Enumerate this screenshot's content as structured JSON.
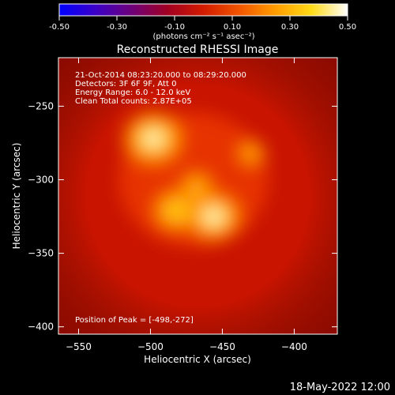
{
  "colorbar": {
    "ticks": [
      "-0.50",
      "-0.30",
      "-0.10",
      "0.10",
      "0.30",
      "0.50"
    ],
    "tick_values": [
      -0.5,
      -0.3,
      -0.1,
      0.1,
      0.3,
      0.5
    ],
    "range": [
      -0.5,
      0.5
    ],
    "unit_label": "(photons cm⁻² s⁻¹ asec⁻²)",
    "colormap": [
      "#0000ff",
      "#3b00c8",
      "#6d007a",
      "#a10022",
      "#d21b00",
      "#f25600",
      "#ff9c00",
      "#ffdb17",
      "#ffffff"
    ]
  },
  "chart_data": {
    "type": "heatmap",
    "title": "Reconstructed RHESSI Image",
    "xlabel": "Heliocentric X (arcsec)",
    "ylabel": "Heliocentric Y (arcsec)",
    "xlim": [
      -564,
      -370
    ],
    "ylim": [
      -405,
      -217
    ],
    "xticks": [
      -550,
      -500,
      -450,
      -400
    ],
    "yticks": [
      -250,
      -300,
      -350,
      -400
    ],
    "xtick_labels": [
      "−550",
      "−500",
      "−450",
      "−400"
    ],
    "ytick_labels": [
      "−250",
      "−300",
      "−350",
      "−400"
    ],
    "info_lines": [
      "21-Oct-2014 08:23:20.000 to 08:29:20.000",
      "Detectors: 3F 6F 9F, Att 0",
      "Energy Range: 6.0 - 12.0 keV",
      "Clean     Total counts: 2.87E+05"
    ],
    "peak_label": "Position of Peak = [-498,-272]",
    "peak_position": [
      -498,
      -272
    ],
    "sources": [
      {
        "x": -498,
        "y": -272,
        "intensity": 0.5
      },
      {
        "x": -456,
        "y": -325,
        "intensity": 0.45
      },
      {
        "x": -482,
        "y": -321,
        "intensity": 0.36
      },
      {
        "x": -468,
        "y": -305,
        "intensity": 0.22
      },
      {
        "x": -430,
        "y": -282,
        "intensity": 0.16
      }
    ],
    "background_level": 0.16
  },
  "footer": {
    "timestamp": "18-May-2022 12:00"
  }
}
